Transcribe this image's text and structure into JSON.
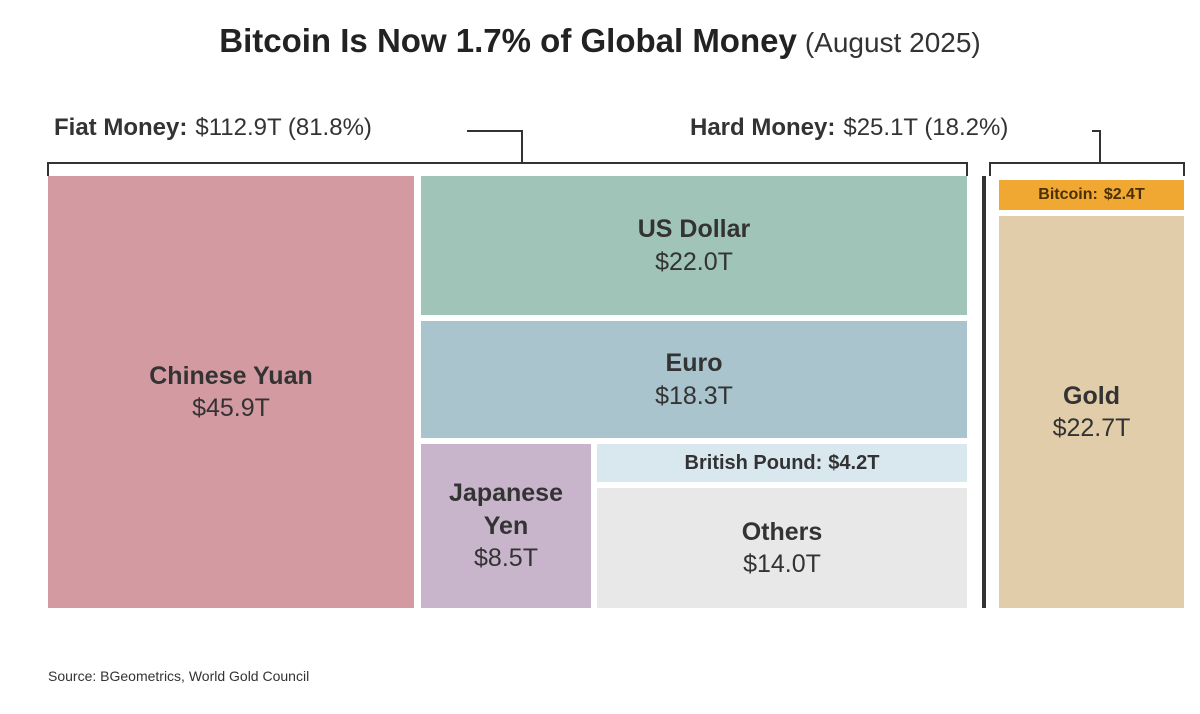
{
  "chart_data": {
    "type": "treemap",
    "title": "Bitcoin Is Now 1.7% of Global Money",
    "subtitle": "(August 2025)",
    "source": "Source: BGeometrics, World Gold Council",
    "groups": [
      {
        "name": "Fiat Money:",
        "total": "$112.9T (81.8%)",
        "categories": [
          "Chinese Yuan",
          "US Dollar",
          "Euro",
          "Japanese Yen",
          "British Pound:",
          "Others"
        ],
        "values": [
          45.9,
          22.0,
          18.3,
          8.5,
          4.2,
          14.0
        ],
        "value_labels": [
          "$45.9T",
          "$22.0T",
          "$18.3T",
          "$8.5T",
          "$4.2T",
          "$14.0T"
        ],
        "colors": [
          "#d49aa1",
          "#a0c5b8",
          "#a9c4cd",
          "#c8b5cb",
          "#d9e7ef",
          "#e8e8e8"
        ]
      },
      {
        "name": "Hard Money:",
        "total": "$25.1T (18.2%)",
        "categories": [
          "Bitcoin:",
          "Gold"
        ],
        "values": [
          2.4,
          22.7
        ],
        "value_labels": [
          "$2.4T",
          "$22.7T"
        ],
        "colors": [
          "#f0a833",
          "#e2cdaa"
        ]
      }
    ]
  }
}
